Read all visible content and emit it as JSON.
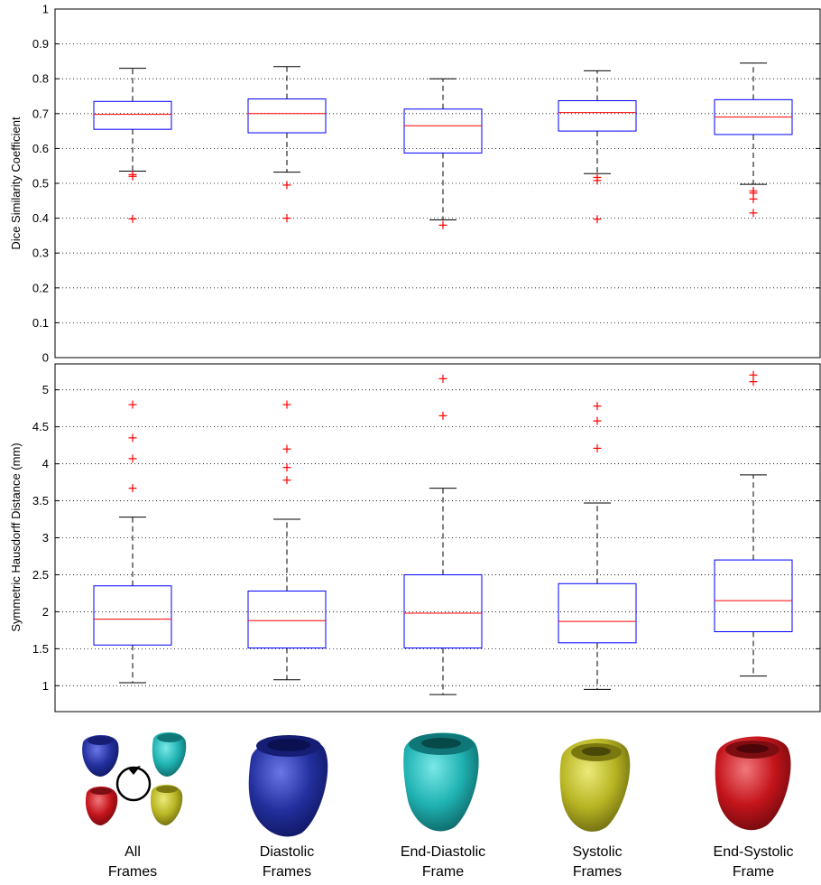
{
  "categories": [
    {
      "line1": "All",
      "line2": "Frames"
    },
    {
      "line1": "Diastolic",
      "line2": "Frames"
    },
    {
      "line1": "End-Diastolic",
      "line2": "Frame"
    },
    {
      "line1": "Systolic",
      "line2": "Frames"
    },
    {
      "line1": "End-Systolic",
      "line2": "Frame"
    }
  ],
  "icons": [
    {
      "name": "all-frames-hearts-icon",
      "colors": [
        "#1f2a9a",
        "#22b3b3",
        "#c0161a",
        "#b3b322"
      ]
    },
    {
      "name": "diastolic-heart-icon",
      "color": "#23309e"
    },
    {
      "name": "end-diastolic-heart-icon",
      "color": "#20b2b2"
    },
    {
      "name": "systolic-heart-icon",
      "color": "#b8b524"
    },
    {
      "name": "end-systolic-heart-icon",
      "color": "#c4141b"
    }
  ],
  "colors": {
    "box": "#0000ff",
    "median": "#ff0000",
    "outlier": "#ff0000",
    "whisker": "#000000"
  },
  "chart_data": [
    {
      "type": "box",
      "ylabel": "Dice Similarity Coefficient",
      "ylim": [
        0,
        1
      ],
      "yticks": [
        0,
        0.1,
        0.2,
        0.3,
        0.4,
        0.5,
        0.6,
        0.7,
        0.8,
        0.9,
        1
      ],
      "ytick_labels": [
        "0",
        "0.1",
        "0.2",
        "0.3",
        "0.4",
        "0.5",
        "0.6",
        "0.7",
        "0.8",
        "0.9",
        "1"
      ],
      "grid": true,
      "boxes": [
        {
          "min": 0.535,
          "q1": 0.655,
          "median": 0.698,
          "q3": 0.735,
          "max": 0.83,
          "outliers": [
            0.525,
            0.52,
            0.398
          ]
        },
        {
          "min": 0.532,
          "q1": 0.645,
          "median": 0.7,
          "q3": 0.742,
          "max": 0.835,
          "outliers": [
            0.495,
            0.4
          ]
        },
        {
          "min": 0.395,
          "q1": 0.587,
          "median": 0.665,
          "q3": 0.713,
          "max": 0.8,
          "outliers": [
            0.38
          ]
        },
        {
          "min": 0.528,
          "q1": 0.65,
          "median": 0.703,
          "q3": 0.737,
          "max": 0.823,
          "outliers": [
            0.517,
            0.508,
            0.397
          ]
        },
        {
          "min": 0.497,
          "q1": 0.64,
          "median": 0.69,
          "q3": 0.74,
          "max": 0.845,
          "outliers": [
            0.478,
            0.472,
            0.455,
            0.415
          ]
        }
      ]
    },
    {
      "type": "box",
      "ylabel": "Symmetric Hausdorff Distance (mm)",
      "ylim": [
        0.65,
        5.35
      ],
      "yticks": [
        1,
        1.5,
        2,
        2.5,
        3,
        3.5,
        4,
        4.5,
        5
      ],
      "ytick_labels": [
        "1",
        "1.5",
        "2",
        "2.5",
        "3",
        "3.5",
        "4",
        "4.5",
        "5"
      ],
      "grid": true,
      "boxes": [
        {
          "min": 1.04,
          "q1": 1.55,
          "median": 1.9,
          "q3": 2.35,
          "max": 3.28,
          "outliers": [
            4.8,
            4.35,
            4.07,
            3.67
          ]
        },
        {
          "min": 1.08,
          "q1": 1.51,
          "median": 1.88,
          "q3": 2.28,
          "max": 3.25,
          "outliers": [
            4.8,
            4.2,
            3.95,
            3.78
          ]
        },
        {
          "min": 0.88,
          "q1": 1.51,
          "median": 1.98,
          "q3": 2.5,
          "max": 3.67,
          "outliers": [
            5.15,
            4.65
          ]
        },
        {
          "min": 0.95,
          "q1": 1.58,
          "median": 1.87,
          "q3": 2.38,
          "max": 3.47,
          "outliers": [
            4.78,
            4.58,
            4.21
          ]
        },
        {
          "min": 1.13,
          "q1": 1.73,
          "median": 2.15,
          "q3": 2.7,
          "max": 3.85,
          "outliers": [
            5.2,
            5.11
          ]
        }
      ]
    }
  ]
}
